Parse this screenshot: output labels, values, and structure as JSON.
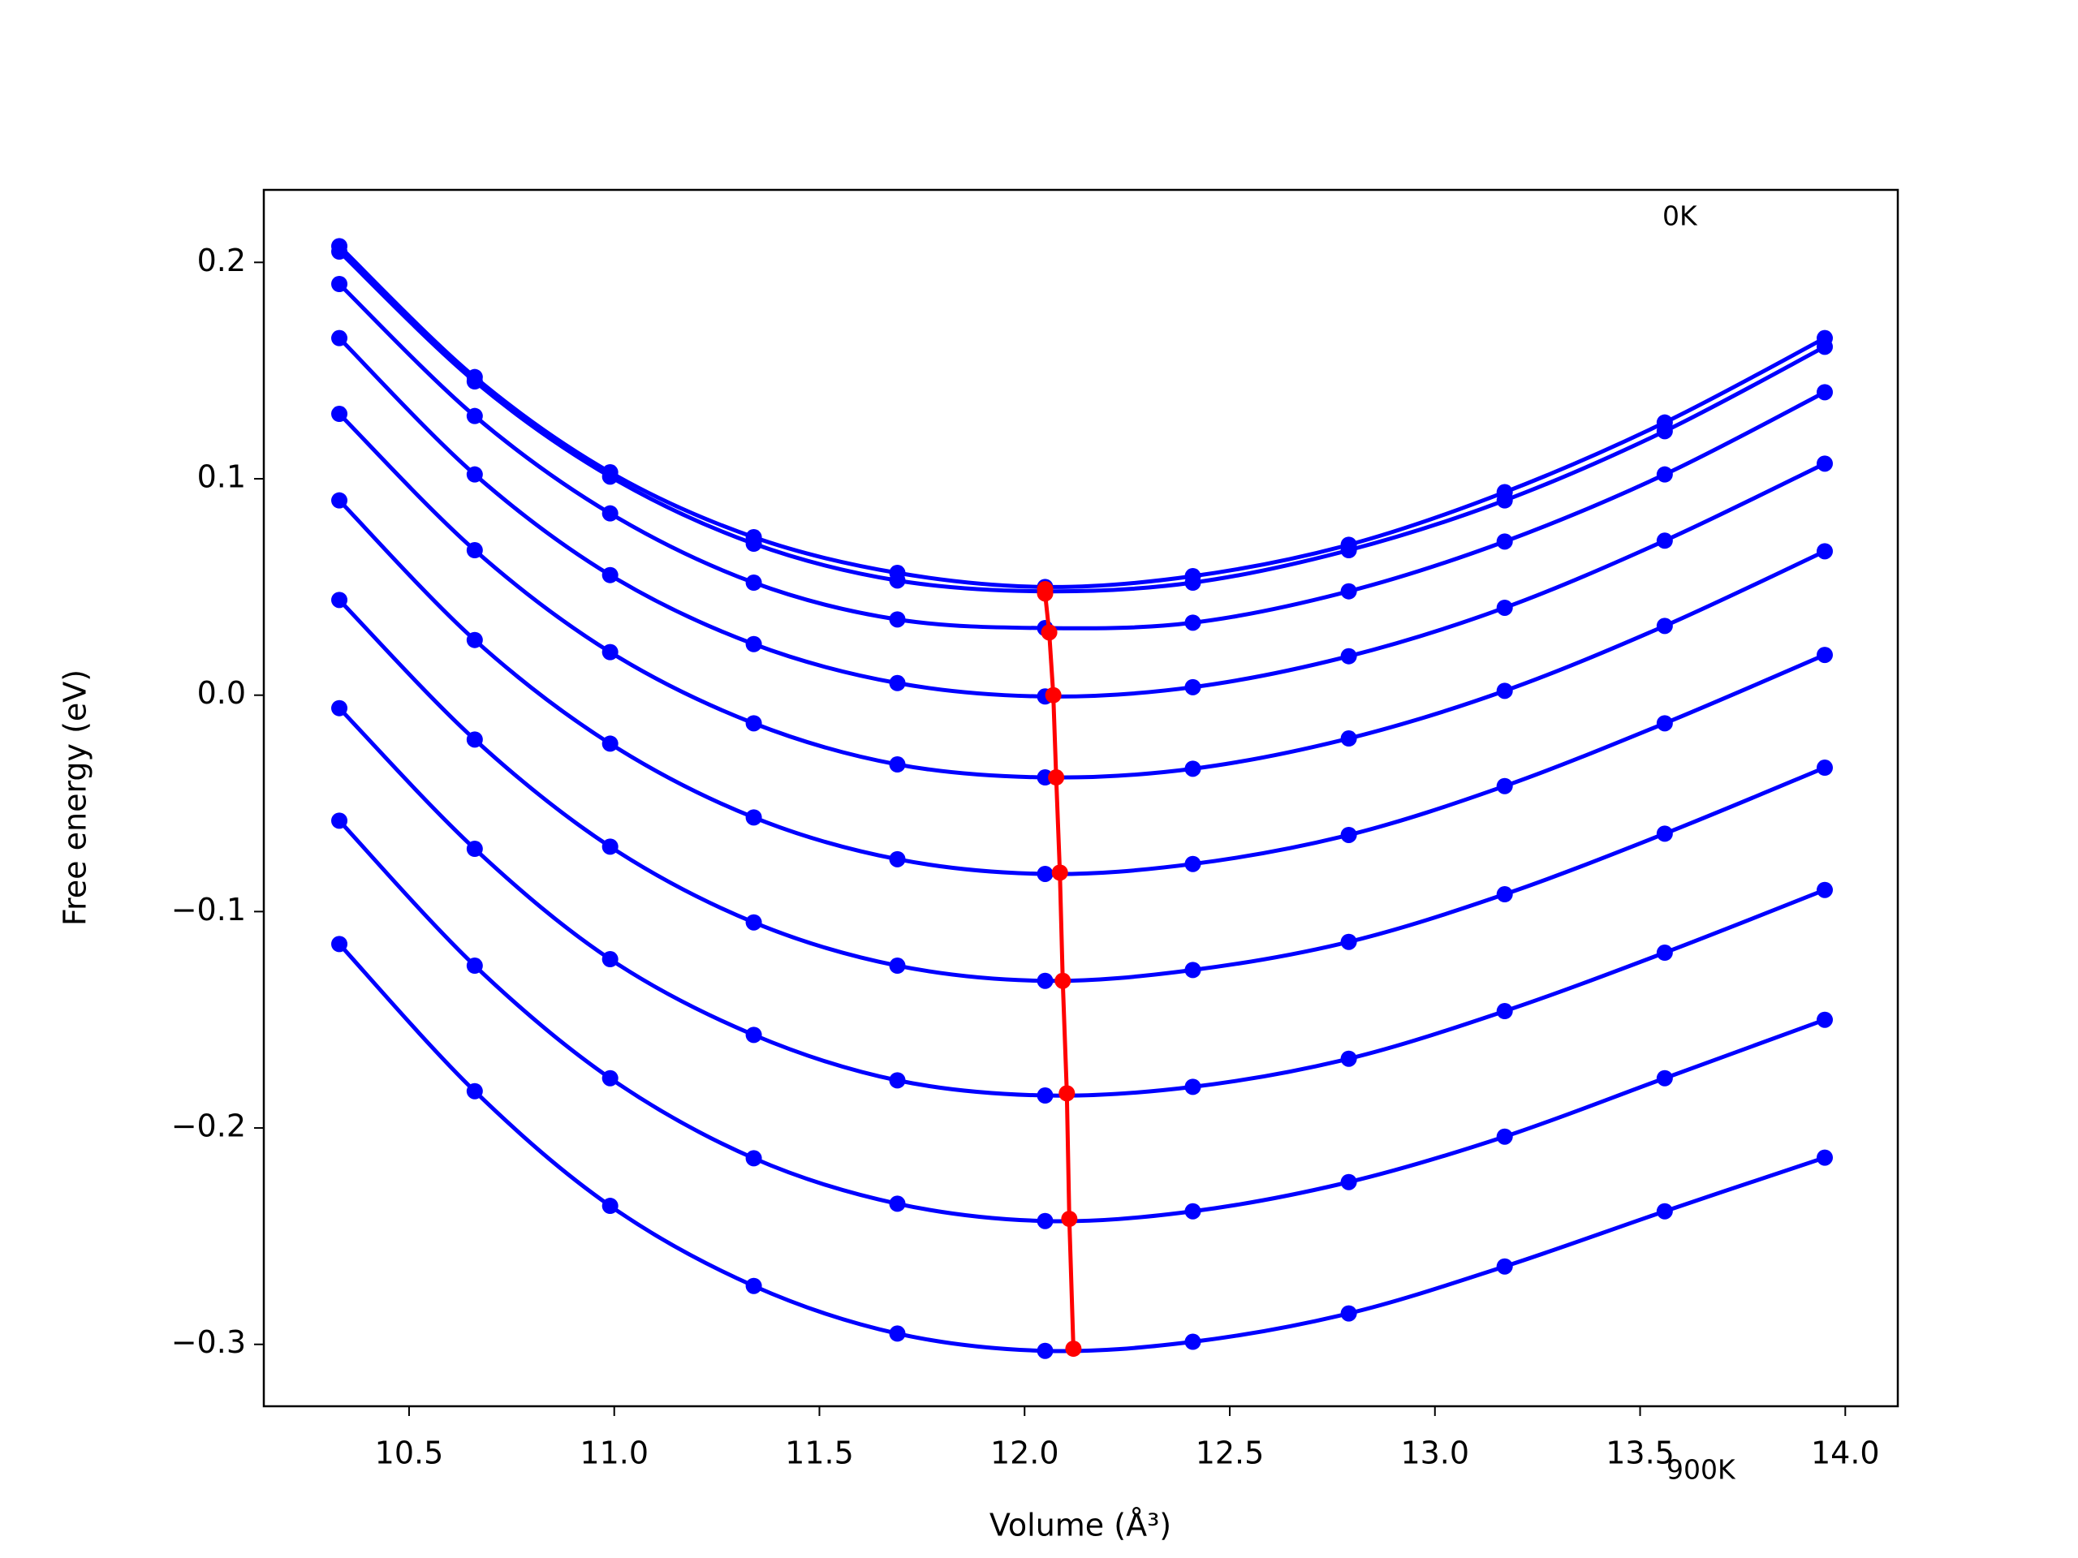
{
  "chart_data": {
    "type": "line",
    "x_label": "Volume (Å³)",
    "y_label": "Free energy (eV)",
    "annotations": [
      "0K",
      "900K"
    ],
    "x": [
      10.33,
      10.66,
      10.99,
      11.34,
      11.69,
      12.05,
      12.41,
      12.79,
      13.17,
      13.56,
      13.95
    ],
    "series": [
      {
        "color": "#0000ff",
        "values": [
          0.2075,
          0.147,
          0.103,
          0.073,
          0.0565,
          0.05,
          0.055,
          0.0695,
          0.0938,
          0.126,
          0.165
        ]
      },
      {
        "color": "#0000ff",
        "values": [
          0.205,
          0.145,
          0.101,
          0.07,
          0.053,
          0.048,
          0.052,
          0.067,
          0.09,
          0.122,
          0.161
        ]
      },
      {
        "color": "#0000ff",
        "values": [
          0.19,
          0.129,
          0.084,
          0.052,
          0.035,
          0.031,
          0.0335,
          0.048,
          0.071,
          0.102,
          0.14
        ]
      },
      {
        "color": "#0000ff",
        "values": [
          0.165,
          0.102,
          0.0555,
          0.0236,
          0.0056,
          -0.0006,
          0.0037,
          0.018,
          0.0404,
          0.0714,
          0.107
        ]
      },
      {
        "color": "#0000ff",
        "values": [
          0.13,
          0.067,
          0.0199,
          -0.013,
          -0.032,
          -0.038,
          -0.034,
          -0.02,
          0.002,
          0.032,
          0.0665
        ]
      },
      {
        "color": "#0000ff",
        "values": [
          0.09,
          0.0255,
          -0.0224,
          -0.0565,
          -0.0758,
          -0.0826,
          -0.078,
          -0.0646,
          -0.042,
          -0.013,
          0.0186
        ]
      },
      {
        "color": "#0000ff",
        "values": [
          0.044,
          -0.0205,
          -0.07,
          -0.105,
          -0.125,
          -0.132,
          -0.127,
          -0.114,
          -0.092,
          -0.064,
          -0.0335
        ]
      },
      {
        "color": "#0000ff",
        "values": [
          -0.006,
          -0.071,
          -0.122,
          -0.157,
          -0.178,
          -0.185,
          -0.181,
          -0.168,
          -0.146,
          -0.119,
          -0.09
        ]
      },
      {
        "color": "#0000ff",
        "values": [
          -0.058,
          -0.125,
          -0.177,
          -0.214,
          -0.235,
          -0.243,
          -0.2385,
          -0.225,
          -0.204,
          -0.177,
          -0.15
        ]
      },
      {
        "color": "#0000ff",
        "values": [
          -0.115,
          -0.183,
          -0.236,
          -0.273,
          -0.295,
          -0.303,
          -0.2988,
          -0.2857,
          -0.264,
          -0.2385,
          -0.2137
        ]
      },
      {
        "color": "#ff0000",
        "x": [
          12.05,
          12.05,
          12.06,
          12.07,
          12.077,
          12.086,
          12.093,
          12.103,
          12.109,
          12.119
        ],
        "values": [
          0.049,
          0.047,
          0.029,
          0.0,
          -0.038,
          -0.082,
          -0.132,
          -0.184,
          -0.242,
          -0.302
        ]
      }
    ],
    "xlim": [
      10.146,
      14.128
    ],
    "ylim": [
      -0.3286,
      0.2335
    ],
    "xticks": [
      10.5,
      {
        "value": 11.0,
        "label": "11.0"
      },
      11.5,
      {
        "value": 12.0,
        "label": "12.0"
      },
      12.5,
      {
        "value": 13.0,
        "label": "13.0"
      },
      13.5,
      {
        "value": 14.0,
        "label": "14.0"
      }
    ],
    "yticks": [
      {
        "value": -0.3,
        "label": "−0.3"
      },
      {
        "value": -0.2,
        "label": "−0.2"
      },
      {
        "value": -0.1,
        "label": "−0.1"
      },
      {
        "value": 0.0,
        "label": "0.0"
      },
      0.1,
      0.2
    ],
    "grid": false
  }
}
